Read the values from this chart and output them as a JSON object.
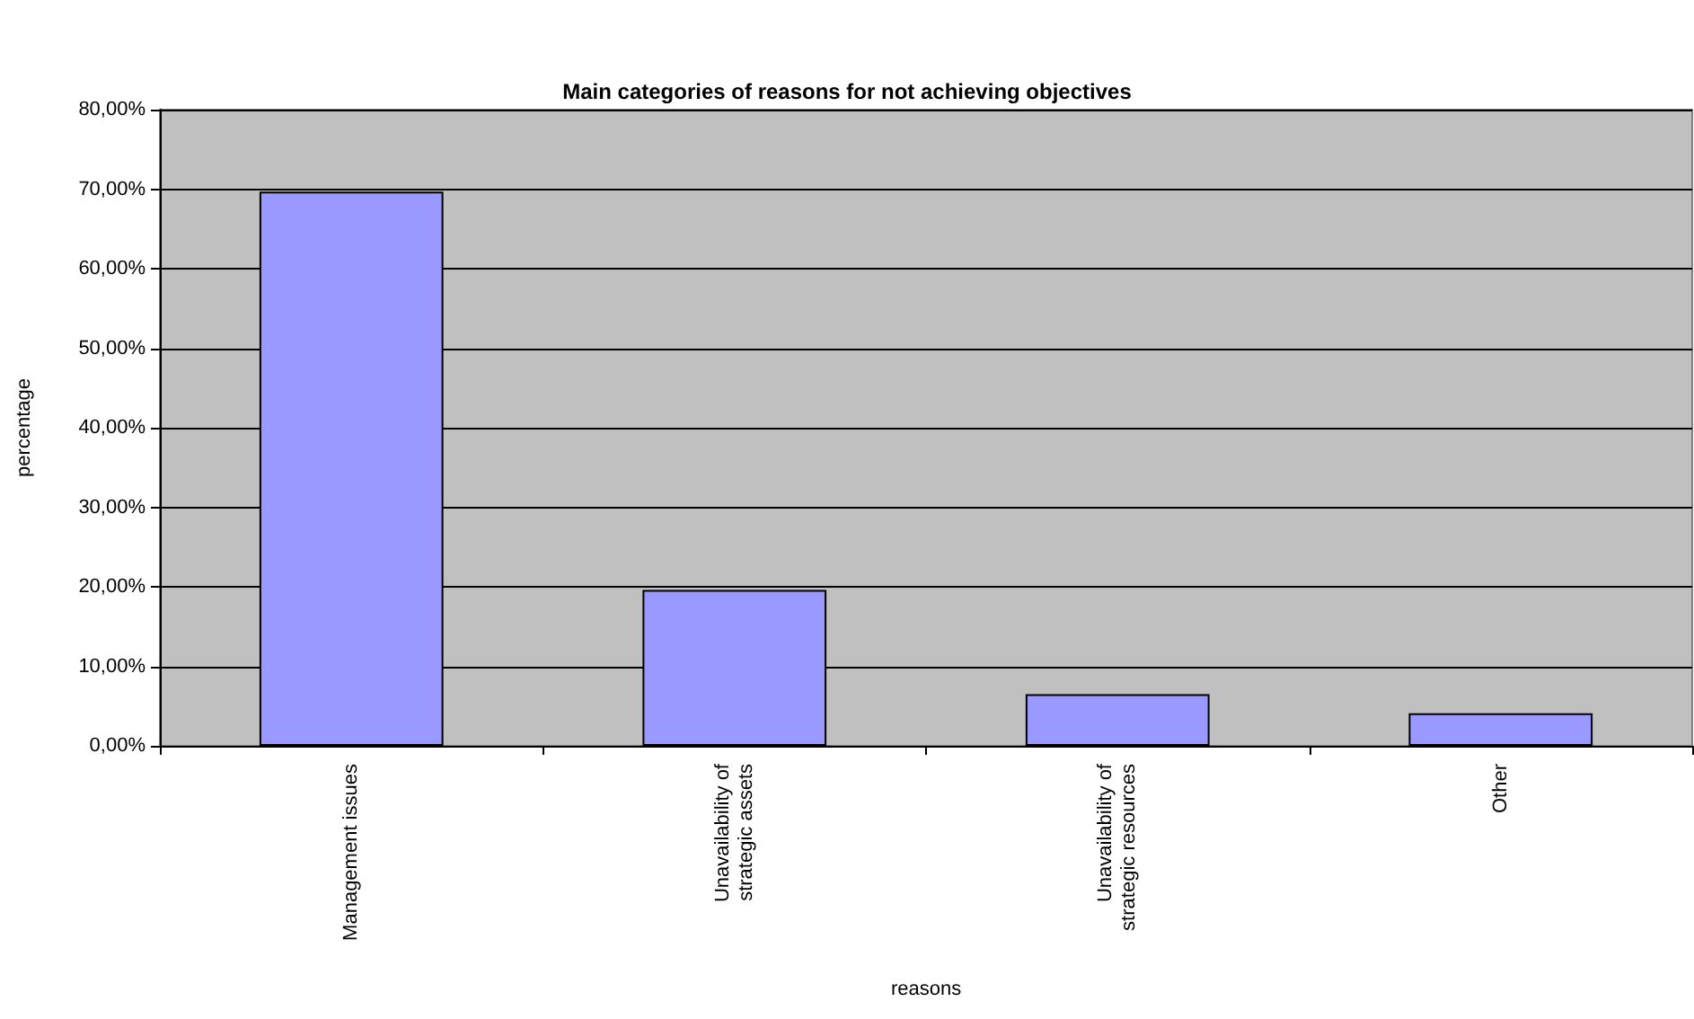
{
  "chart_data": {
    "type": "bar",
    "title": "Main categories of reasons for not achieving objectives",
    "xlabel": "reasons",
    "ylabel": "percentage",
    "categories": [
      "Management issues",
      "Unavailability of\nstrategic assets",
      "Unavailability of\nstrategic resources",
      "Other"
    ],
    "values": [
      69.7,
      19.6,
      6.5,
      4.1
    ],
    "color": "#9999ff",
    "ylim": [
      0,
      80
    ],
    "yticks": [
      {
        "value": 0,
        "label": "0,00%"
      },
      {
        "value": 10,
        "label": "10,00%"
      },
      {
        "value": 20,
        "label": "20,00%"
      },
      {
        "value": 30,
        "label": "30,00%"
      },
      {
        "value": 40,
        "label": "40,00%"
      },
      {
        "value": 50,
        "label": "50,00%"
      },
      {
        "value": 60,
        "label": "60,00%"
      },
      {
        "value": 70,
        "label": "70,00%"
      },
      {
        "value": 80,
        "label": "80,00%"
      }
    ],
    "grid": "y"
  }
}
